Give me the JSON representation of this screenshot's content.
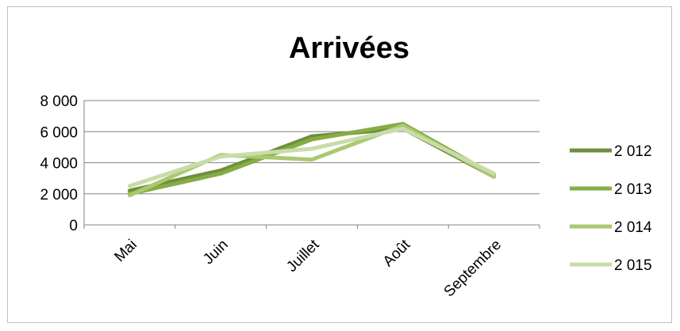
{
  "chart_data": {
    "type": "line",
    "title": "Arrivées",
    "categories": [
      "Mai",
      "Juin",
      "Juillet",
      "Août",
      "Septembre"
    ],
    "ylim": [
      0,
      8000
    ],
    "yticks": [
      0,
      2000,
      4000,
      6000,
      8000
    ],
    "ytick_labels": [
      "0",
      "2 000",
      "4 000",
      "6 000",
      "8 000"
    ],
    "grid": true,
    "legend": "right",
    "series": [
      {
        "name": "2 012",
        "color": "#6e8f3c",
        "values": [
          2200,
          3500,
          5700,
          6200,
          3100
        ]
      },
      {
        "name": "2 013",
        "color": "#86ad43",
        "values": [
          2000,
          3300,
          5500,
          6500,
          3200
        ]
      },
      {
        "name": "2 014",
        "color": "#a9c971",
        "values": [
          1900,
          4500,
          4200,
          6400,
          3100
        ]
      },
      {
        "name": "2 015",
        "color": "#c8dcaa",
        "values": [
          2500,
          4400,
          4900,
          6200,
          3300
        ]
      }
    ]
  }
}
